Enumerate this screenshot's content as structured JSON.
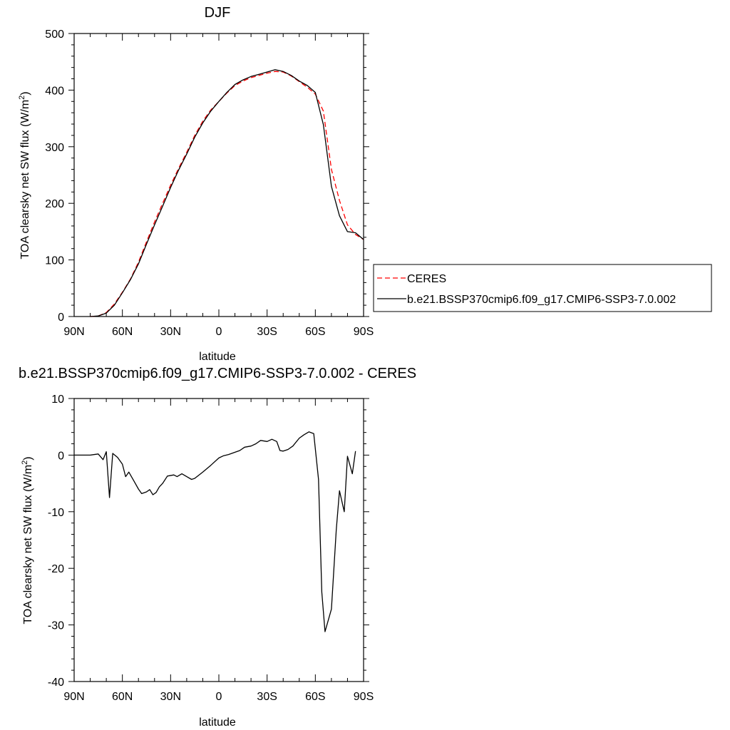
{
  "chart_data": [
    {
      "type": "line",
      "title": "DJF",
      "xlabel": "latitude",
      "ylabel": "TOA clearsky net SW flux (W/m",
      "ylabel_sup": "2",
      "ylabel_end": ")",
      "xlim": [
        -90,
        90
      ],
      "ylim": [
        0,
        500
      ],
      "x_ticks": [
        -90,
        -60,
        -30,
        0,
        30,
        60,
        90
      ],
      "x_tick_labels": [
        "90N",
        "60N",
        "30N",
        "0",
        "30S",
        "60S",
        "90S"
      ],
      "y_ticks": [
        0,
        100,
        200,
        300,
        400,
        500
      ],
      "y_tick_labels": [
        "0",
        "100",
        "200",
        "300",
        "400",
        "500"
      ],
      "legend_position": "right",
      "series": [
        {
          "name": "CERES",
          "color": "#ff0000",
          "dash": "dashed",
          "points": [
            [
              -80,
              0
            ],
            [
              -75,
              1
            ],
            [
              -70,
              7
            ],
            [
              -65,
              22
            ],
            [
              -60,
              43
            ],
            [
              -55,
              66
            ],
            [
              -50,
              96
            ],
            [
              -45,
              132
            ],
            [
              -40,
              167
            ],
            [
              -35,
              200
            ],
            [
              -30,
              232
            ],
            [
              -25,
              262
            ],
            [
              -20,
              290
            ],
            [
              -15,
              320
            ],
            [
              -10,
              345
            ],
            [
              -5,
              365
            ],
            [
              0,
              380
            ],
            [
              5,
              395
            ],
            [
              10,
              408
            ],
            [
              15,
              416
            ],
            [
              20,
              422
            ],
            [
              25,
              426
            ],
            [
              30,
              430
            ],
            [
              35,
              433
            ],
            [
              40,
              432
            ],
            [
              45,
              425
            ],
            [
              50,
              415
            ],
            [
              55,
              405
            ],
            [
              60,
              393
            ],
            [
              65,
              363
            ],
            [
              70,
              260
            ],
            [
              75,
              205
            ],
            [
              80,
              162
            ],
            [
              85,
              145
            ],
            [
              90,
              136
            ]
          ]
        },
        {
          "name": "b.e21.BSSP370cmip6.f09_g17.CMIP6-SSP3-7.0.002",
          "color": "#000000",
          "dash": "solid",
          "points": [
            [
              -80,
              0
            ],
            [
              -75,
              1
            ],
            [
              -70,
              6
            ],
            [
              -65,
              20
            ],
            [
              -60,
              42
            ],
            [
              -55,
              65
            ],
            [
              -50,
              93
            ],
            [
              -45,
              128
            ],
            [
              -40,
              162
            ],
            [
              -35,
              195
            ],
            [
              -30,
              228
            ],
            [
              -25,
              259
            ],
            [
              -20,
              287
            ],
            [
              -15,
              317
            ],
            [
              -10,
              342
            ],
            [
              -5,
              363
            ],
            [
              0,
              380
            ],
            [
              5,
              396
            ],
            [
              10,
              410
            ],
            [
              15,
              418
            ],
            [
              20,
              424
            ],
            [
              25,
              428
            ],
            [
              30,
              432
            ],
            [
              35,
              436
            ],
            [
              40,
              433
            ],
            [
              45,
              426
            ],
            [
              50,
              416
            ],
            [
              55,
              408
            ],
            [
              60,
              396
            ],
            [
              65,
              339
            ],
            [
              70,
              230
            ],
            [
              75,
              178
            ],
            [
              80,
              150
            ],
            [
              85,
              148
            ],
            [
              90,
              136
            ]
          ]
        }
      ]
    },
    {
      "type": "line",
      "title": "b.e21.BSSP370cmip6.f09_g17.CMIP6-SSP3-7.0.002 - CERES",
      "xlabel": "latitude",
      "ylabel": "TOA clearsky net SW flux (W/m",
      "ylabel_sup": "2",
      "ylabel_end": ")",
      "xlim": [
        -90,
        90
      ],
      "ylim": [
        -40,
        10
      ],
      "x_ticks": [
        -90,
        -60,
        -30,
        0,
        30,
        60,
        90
      ],
      "x_tick_labels": [
        "90N",
        "60N",
        "30N",
        "0",
        "30S",
        "60S",
        "90S"
      ],
      "y_ticks": [
        -40,
        -30,
        -20,
        -10,
        0,
        10
      ],
      "y_tick_labels": [
        "-40",
        "-30",
        "-20",
        "-10",
        "0",
        "10"
      ],
      "series": [
        {
          "color": "#000000",
          "dash": "solid",
          "points": [
            [
              -90,
              0
            ],
            [
              -80,
              0
            ],
            [
              -75,
              0.2
            ],
            [
              -72,
              -0.8
            ],
            [
              -70,
              0.6
            ],
            [
              -68,
              -7.5
            ],
            [
              -66,
              0.3
            ],
            [
              -63,
              -0.4
            ],
            [
              -60,
              -1.6
            ],
            [
              -58,
              -3.8
            ],
            [
              -56,
              -3
            ],
            [
              -53,
              -4.5
            ],
            [
              -50,
              -6
            ],
            [
              -48,
              -6.8
            ],
            [
              -45,
              -6.5
            ],
            [
              -43,
              -6.1
            ],
            [
              -41,
              -7
            ],
            [
              -39,
              -6.6
            ],
            [
              -37,
              -5.6
            ],
            [
              -35,
              -5
            ],
            [
              -32,
              -3.7
            ],
            [
              -28,
              -3.5
            ],
            [
              -26,
              -3.8
            ],
            [
              -23,
              -3.3
            ],
            [
              -20,
              -3.8
            ],
            [
              -17,
              -4.3
            ],
            [
              -15,
              -4.1
            ],
            [
              -10,
              -3
            ],
            [
              -5,
              -1.8
            ],
            [
              0,
              -0.5
            ],
            [
              3,
              -0.1
            ],
            [
              6,
              0.1
            ],
            [
              10,
              0.5
            ],
            [
              13,
              0.8
            ],
            [
              16,
              1.4
            ],
            [
              20,
              1.6
            ],
            [
              23,
              2
            ],
            [
              26,
              2.6
            ],
            [
              30,
              2.4
            ],
            [
              33,
              2.8
            ],
            [
              36,
              2.4
            ],
            [
              38,
              0.8
            ],
            [
              40,
              0.7
            ],
            [
              43,
              1
            ],
            [
              46,
              1.6
            ],
            [
              50,
              3
            ],
            [
              53,
              3.6
            ],
            [
              56,
              4.1
            ],
            [
              59,
              3.8
            ],
            [
              62,
              -4.3
            ],
            [
              64,
              -24.2
            ],
            [
              66,
              -31.2
            ],
            [
              70,
              -27.2
            ],
            [
              73,
              -13.2
            ],
            [
              75,
              -6.3
            ],
            [
              78,
              -10
            ],
            [
              80,
              -0.2
            ],
            [
              83,
              -3.3
            ],
            [
              85,
              0.7
            ]
          ]
        }
      ]
    }
  ]
}
